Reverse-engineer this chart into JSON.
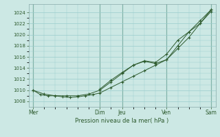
{
  "title": "Pression niveau de la mer( hPa )",
  "background_color": "#cce8e4",
  "grid_color": "#99cccc",
  "line_color": "#2d5a2d",
  "ylim": [
    1007,
    1025.5
  ],
  "yticks": [
    1008,
    1010,
    1012,
    1014,
    1016,
    1018,
    1020,
    1022,
    1024
  ],
  "xtick_labels": [
    "Mer",
    "Dim",
    "Jeu",
    "Ven",
    "Sam"
  ],
  "xtick_positions": [
    0,
    3,
    4,
    6,
    8
  ],
  "total_x": 8,
  "series1_x": [
    0,
    0.33,
    0.67,
    1.0,
    1.33,
    1.67,
    2.0,
    2.33,
    2.67,
    3.0,
    3.5,
    4.0,
    4.5,
    5.0,
    5.5,
    6.0,
    6.5,
    7.0,
    7.5,
    8.0
  ],
  "series1_y": [
    1010.0,
    1009.2,
    1009.0,
    1009.0,
    1008.8,
    1008.7,
    1008.8,
    1009.0,
    1009.2,
    1009.5,
    1010.5,
    1011.5,
    1012.5,
    1013.5,
    1014.5,
    1015.5,
    1018.0,
    1020.5,
    1022.5,
    1024.5
  ],
  "series2_x": [
    0,
    0.5,
    1.0,
    1.5,
    2.0,
    2.5,
    3.0,
    3.5,
    4.0,
    4.5,
    5.0,
    5.5,
    6.0,
    6.5,
    7.0,
    7.5,
    8.0
  ],
  "series2_y": [
    1010.0,
    1009.3,
    1009.0,
    1009.0,
    1009.0,
    1009.3,
    1010.0,
    1011.5,
    1013.0,
    1014.5,
    1015.2,
    1014.8,
    1015.5,
    1017.5,
    1019.5,
    1022.0,
    1024.5
  ],
  "series3_x": [
    3.0,
    3.5,
    4.0,
    4.5,
    5.0,
    5.5,
    6.0,
    6.5,
    7.0,
    7.5,
    8.0
  ],
  "series3_y": [
    1010.2,
    1011.8,
    1013.2,
    1014.5,
    1015.3,
    1015.0,
    1016.5,
    1019.0,
    1020.5,
    1022.0,
    1024.2
  ],
  "vline_positions": [
    0,
    3.0,
    4.0,
    6.0,
    8.0
  ],
  "marker": "+"
}
